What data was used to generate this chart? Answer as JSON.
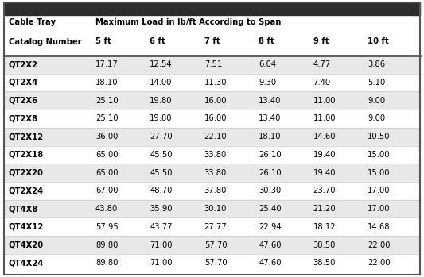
{
  "col_header_line1": "Cable Tray",
  "col_header_line2": "Catalog Number",
  "span_header": "Maximum Load in lb/ft According to Span",
  "span_cols": [
    "5 ft",
    "6 ft",
    "7 ft",
    "8 ft",
    "9 ft",
    "10 ft"
  ],
  "rows": [
    {
      "cat": "QT2X2",
      "vals": [
        17.17,
        12.54,
        7.51,
        6.04,
        4.77,
        3.86
      ]
    },
    {
      "cat": "QT2X4",
      "vals": [
        18.1,
        14.0,
        11.3,
        9.3,
        7.4,
        5.1
      ]
    },
    {
      "cat": "QT2X6",
      "vals": [
        25.1,
        19.8,
        16.0,
        13.4,
        11.0,
        9.0
      ]
    },
    {
      "cat": "QT2X8",
      "vals": [
        25.1,
        19.8,
        16.0,
        13.4,
        11.0,
        9.0
      ]
    },
    {
      "cat": "QT2X12",
      "vals": [
        36.0,
        27.7,
        22.1,
        18.1,
        14.6,
        10.5
      ]
    },
    {
      "cat": "QT2X18",
      "vals": [
        65.0,
        45.5,
        33.8,
        26.1,
        19.4,
        15.0
      ]
    },
    {
      "cat": "QT2X20",
      "vals": [
        65.0,
        45.5,
        33.8,
        26.1,
        19.4,
        15.0
      ]
    },
    {
      "cat": "QT2X24",
      "vals": [
        67.0,
        48.7,
        37.8,
        30.3,
        23.7,
        17.0
      ]
    },
    {
      "cat": "QT4X8",
      "vals": [
        43.8,
        35.9,
        30.1,
        25.4,
        21.2,
        17.0
      ]
    },
    {
      "cat": "QT4X12",
      "vals": [
        57.95,
        43.77,
        27.77,
        22.94,
        18.12,
        14.68
      ]
    },
    {
      "cat": "QT4X20",
      "vals": [
        89.8,
        71.0,
        57.7,
        47.6,
        38.5,
        22.0
      ]
    },
    {
      "cat": "QT4X24",
      "vals": [
        89.8,
        71.0,
        57.7,
        47.6,
        38.5,
        22.0
      ]
    }
  ],
  "top_bar_color": "#2d2d2d",
  "top_bar_height": 0.045,
  "header_bg": "#ffffff",
  "header_text_color": "#000000",
  "row_bg_odd": "#e8e8e8",
  "row_bg_even": "#ffffff",
  "cat_text_color": "#000000",
  "val_text_color": "#000000",
  "divider_color": "#555555",
  "outer_border_color": "#555555",
  "font_size": 7.2
}
